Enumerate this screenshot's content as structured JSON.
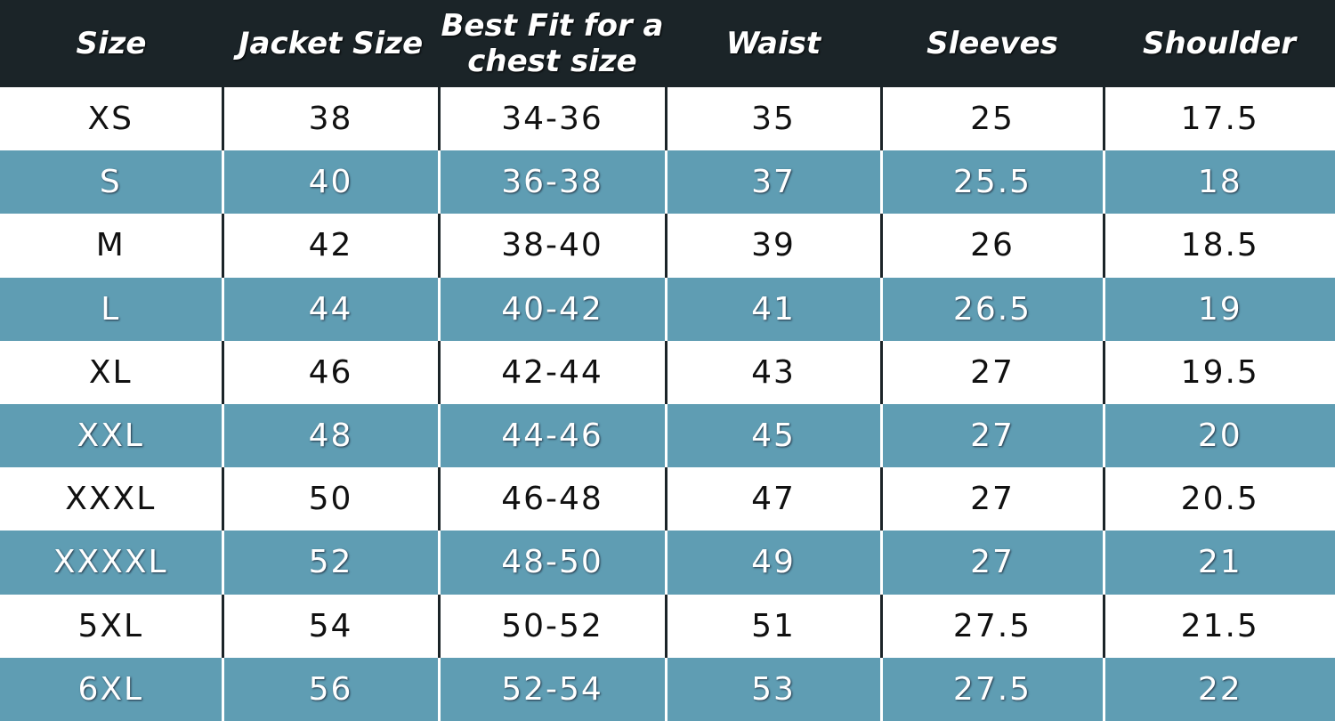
{
  "colors": {
    "header": "#1b2428",
    "stripe": "#5f9db3"
  },
  "headers": [
    "Size",
    "Jacket Size",
    "Best Fit for a chest size",
    "Waist",
    "Sleeves",
    "Shoulder"
  ],
  "rows": [
    [
      "XS",
      "38",
      "34-36",
      "35",
      "25",
      "17.5"
    ],
    [
      "S",
      "40",
      "36-38",
      "37",
      "25.5",
      "18"
    ],
    [
      "M",
      "42",
      "38-40",
      "39",
      "26",
      "18.5"
    ],
    [
      "L",
      "44",
      "40-42",
      "41",
      "26.5",
      "19"
    ],
    [
      "XL",
      "46",
      "42-44",
      "43",
      "27",
      "19.5"
    ],
    [
      "XXL",
      "48",
      "44-46",
      "45",
      "27",
      "20"
    ],
    [
      "XXXL",
      "50",
      "46-48",
      "47",
      "27",
      "20.5"
    ],
    [
      "XXXXL",
      "52",
      "48-50",
      "49",
      "27",
      "21"
    ],
    [
      "5XL",
      "54",
      "50-52",
      "51",
      "27.5",
      "21.5"
    ],
    [
      "6XL",
      "56",
      "52-54",
      "53",
      "27.5",
      "22"
    ]
  ]
}
